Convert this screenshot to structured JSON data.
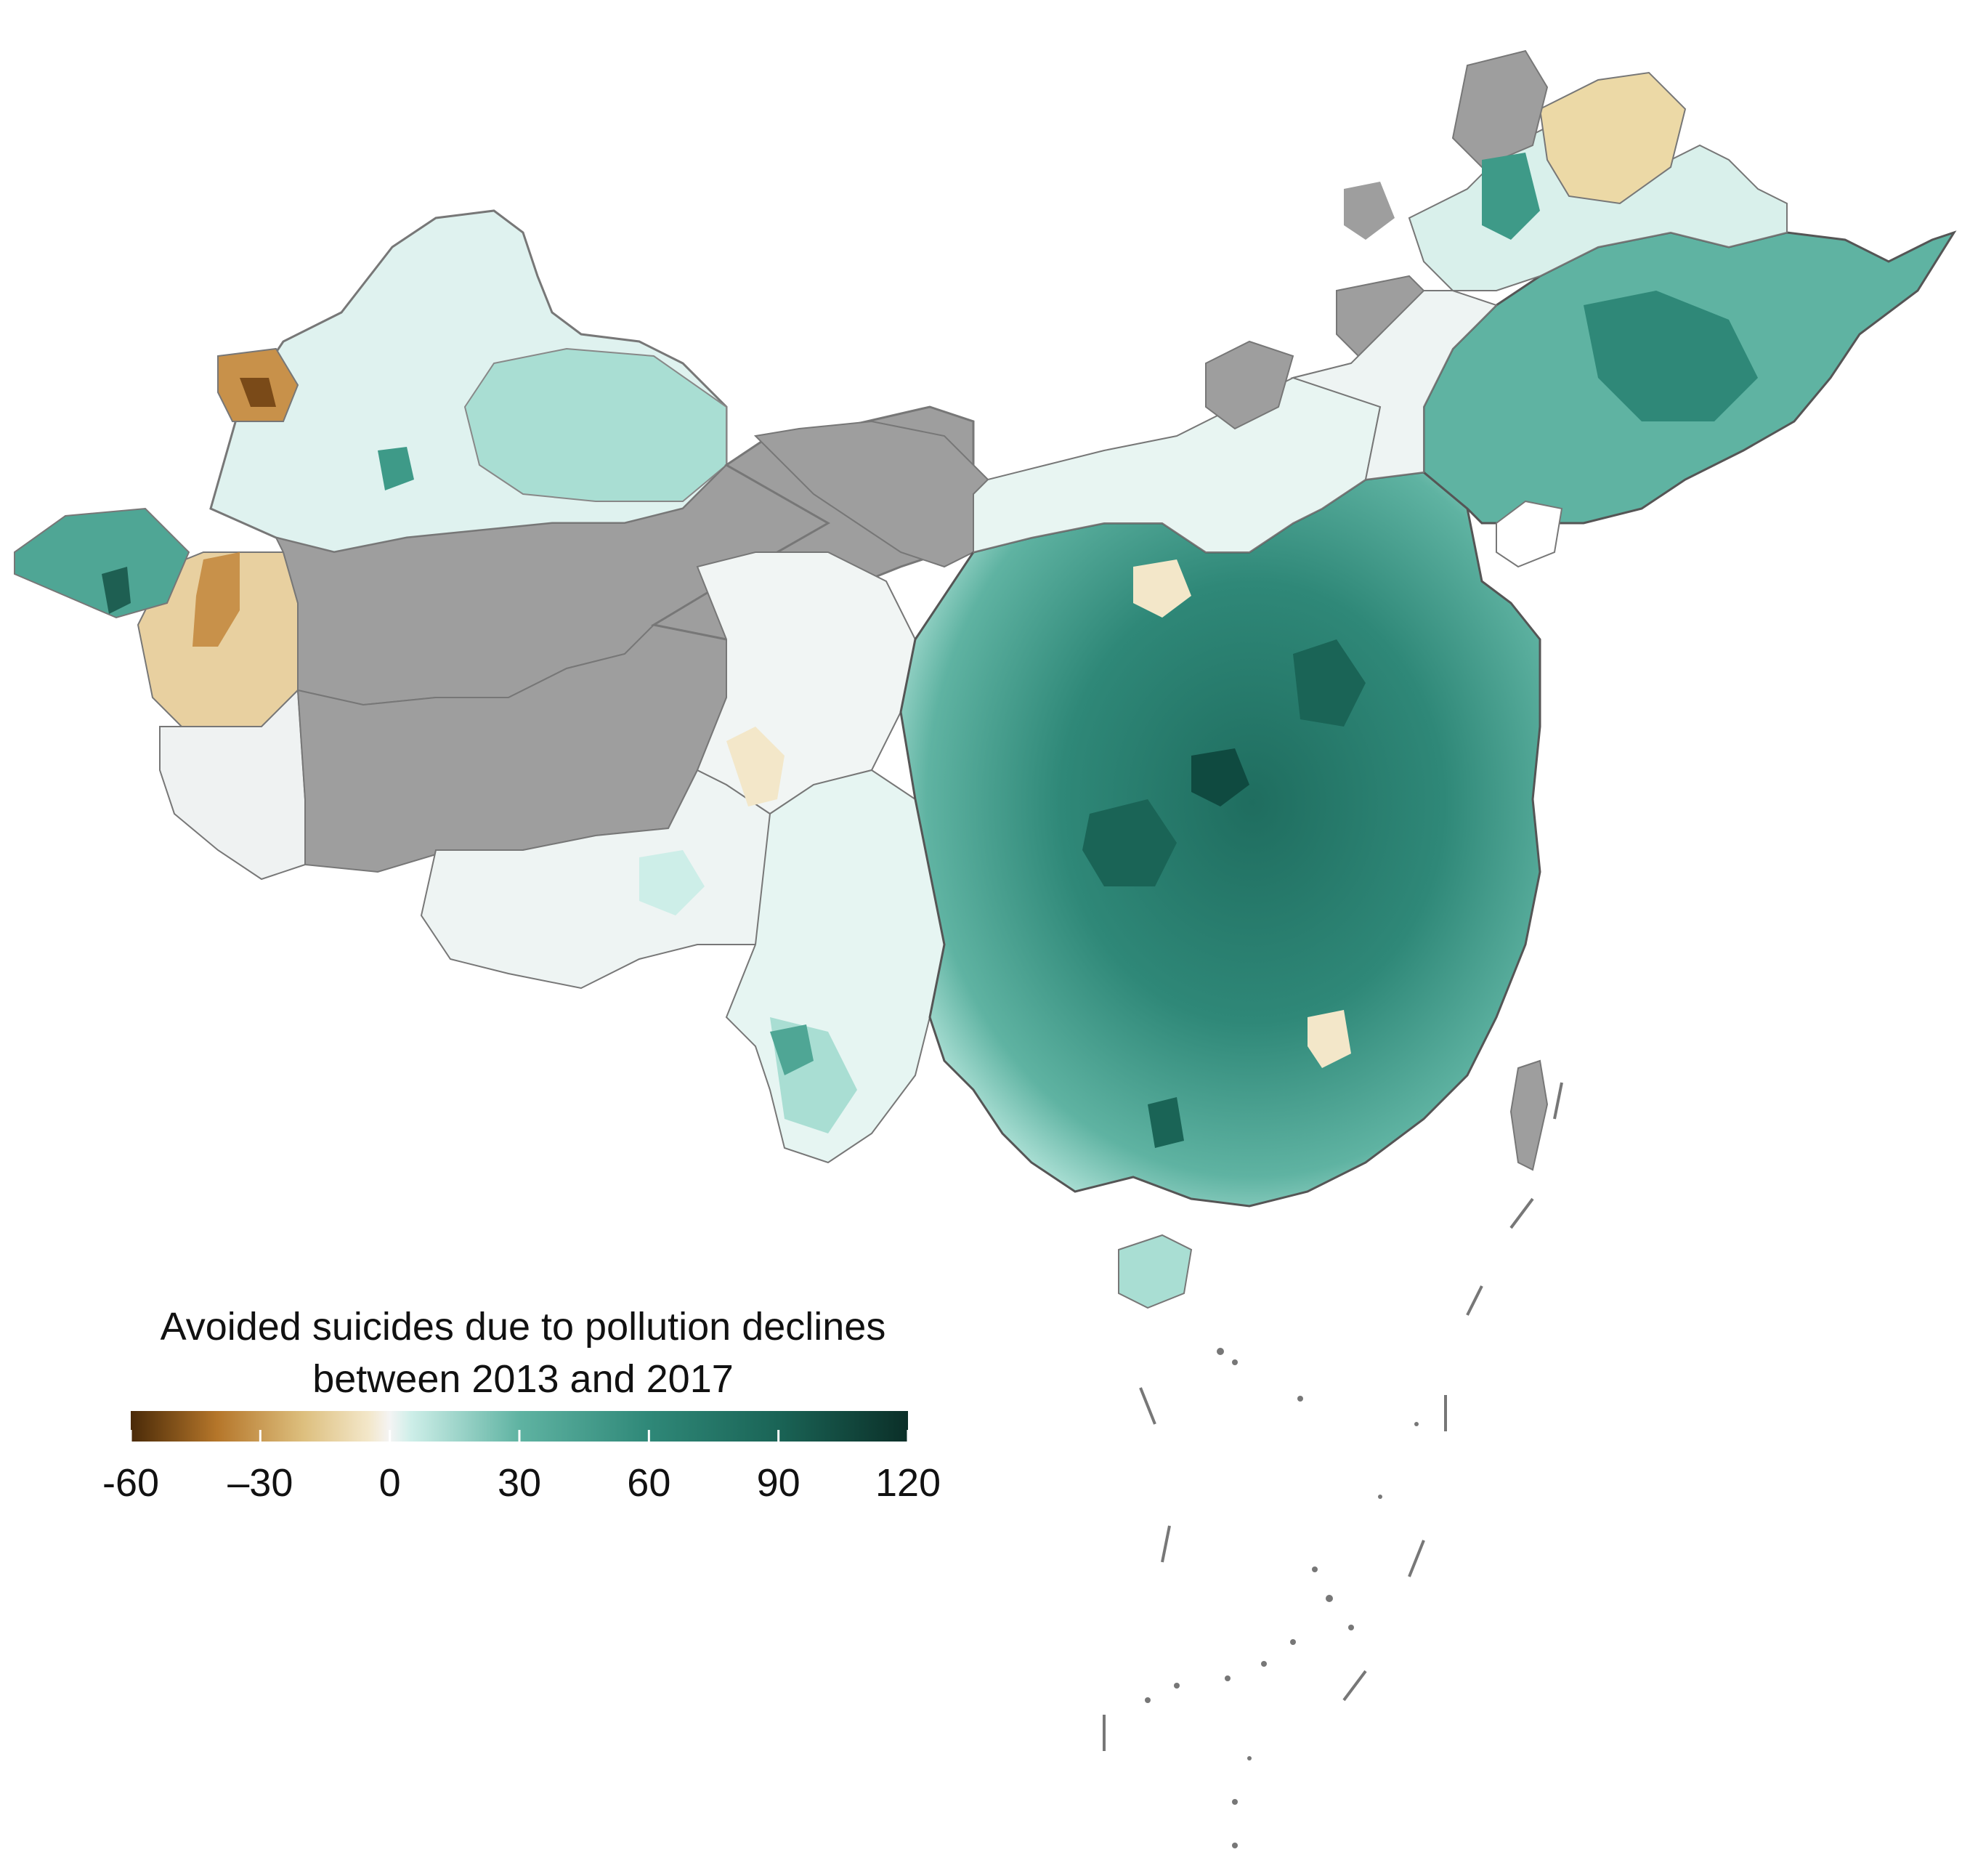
{
  "map": {
    "region": "China",
    "layer": "county-level choropleth",
    "no_data_color": "#9e9e9e",
    "border_color": "#555555"
  },
  "legend": {
    "title_line1": "Avoided suicides due to pollution declines",
    "title_line2": "between 2013 and 2017",
    "range": [
      -60,
      120
    ],
    "ticks": [
      {
        "value": -60,
        "label": "-60"
      },
      {
        "value": -30,
        "label": "–30"
      },
      {
        "value": 0,
        "label": "0"
      },
      {
        "value": 30,
        "label": "30"
      },
      {
        "value": 60,
        "label": "60"
      },
      {
        "value": 90,
        "label": "90"
      },
      {
        "value": 120,
        "label": "120"
      }
    ],
    "color_stops": [
      {
        "value": -60,
        "color": "#4a2a08"
      },
      {
        "value": -40,
        "color": "#b5762a"
      },
      {
        "value": -20,
        "color": "#ddbf7e"
      },
      {
        "value": -5,
        "color": "#f3e7c9"
      },
      {
        "value": 0,
        "color": "#f4f4f4"
      },
      {
        "value": 5,
        "color": "#cdeee8"
      },
      {
        "value": 30,
        "color": "#5fb3a2"
      },
      {
        "value": 60,
        "color": "#2f8878"
      },
      {
        "value": 90,
        "color": "#1a6456"
      },
      {
        "value": 120,
        "color": "#0b2f28"
      }
    ]
  }
}
